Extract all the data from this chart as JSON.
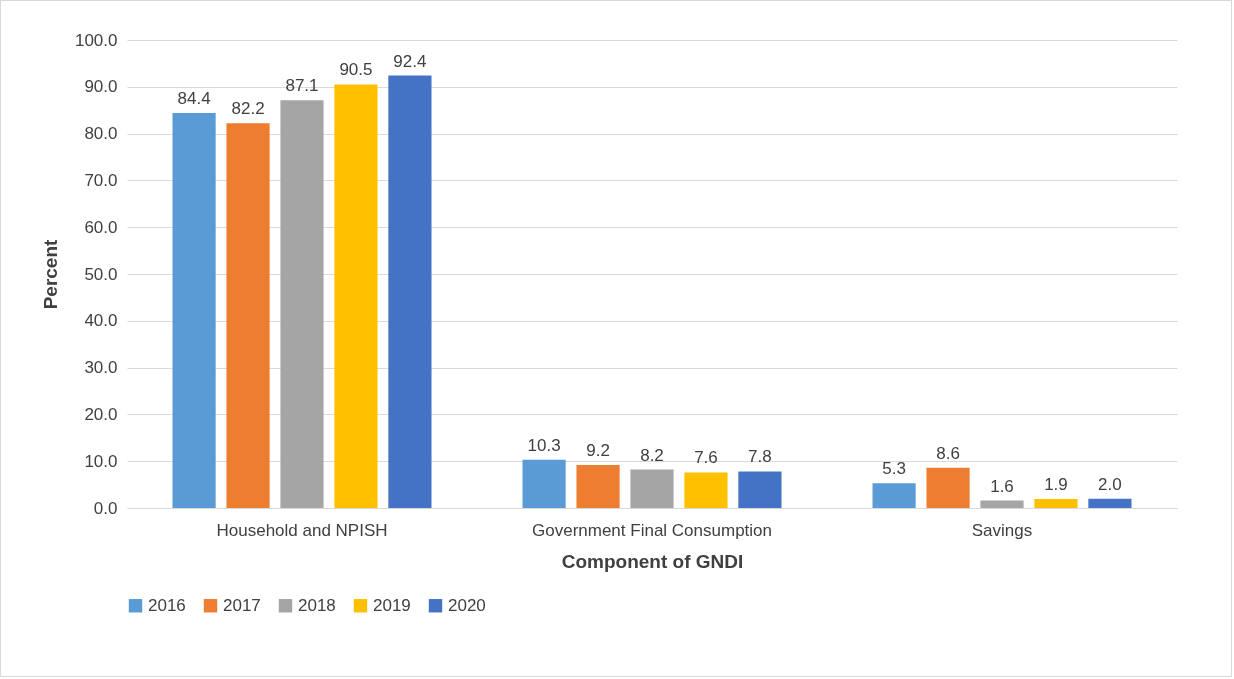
{
  "chart_data": {
    "type": "bar",
    "xlabel": "Component of GNDI",
    "ylabel": "Percent",
    "categories": [
      "Household and NPISH",
      "Government Final Consumption",
      "Savings"
    ],
    "series": [
      {
        "name": "2016",
        "color": "#5b9bd5",
        "values": [
          84.4,
          10.3,
          5.3
        ],
        "value_labels": [
          "84.4",
          "10.3",
          "5.3"
        ]
      },
      {
        "name": "2017",
        "color": "#ed7d31",
        "values": [
          82.2,
          9.2,
          8.6
        ],
        "value_labels": [
          "82.2",
          "9.2",
          "8.6"
        ]
      },
      {
        "name": "2018",
        "color": "#a5a5a5",
        "values": [
          87.1,
          8.2,
          1.6
        ],
        "value_labels": [
          "87.1",
          "8.2",
          "1.6"
        ]
      },
      {
        "name": "2019",
        "color": "#ffc000",
        "values": [
          90.5,
          7.6,
          1.9
        ],
        "value_labels": [
          "90.5",
          "7.6",
          "1.9"
        ]
      },
      {
        "name": "2020",
        "color": "#4472c4",
        "values": [
          92.4,
          7.8,
          2.0
        ],
        "value_labels": [
          "92.4",
          "7.8",
          "2.0"
        ]
      }
    ],
    "ylim": [
      0,
      100
    ],
    "yticks": [
      {
        "value": 0,
        "label": "0.0"
      },
      {
        "value": 10,
        "label": "10.0"
      },
      {
        "value": 20,
        "label": "20.0"
      },
      {
        "value": 30,
        "label": "30.0"
      },
      {
        "value": 40,
        "label": "40.0"
      },
      {
        "value": 50,
        "label": "50.0"
      },
      {
        "value": 60,
        "label": "60.0"
      },
      {
        "value": 70,
        "label": "70.0"
      },
      {
        "value": 80,
        "label": "80.0"
      },
      {
        "value": 90,
        "label": "90.0"
      },
      {
        "value": 100,
        "label": "100.0"
      }
    ],
    "grid": "y",
    "legend": "bottom"
  }
}
